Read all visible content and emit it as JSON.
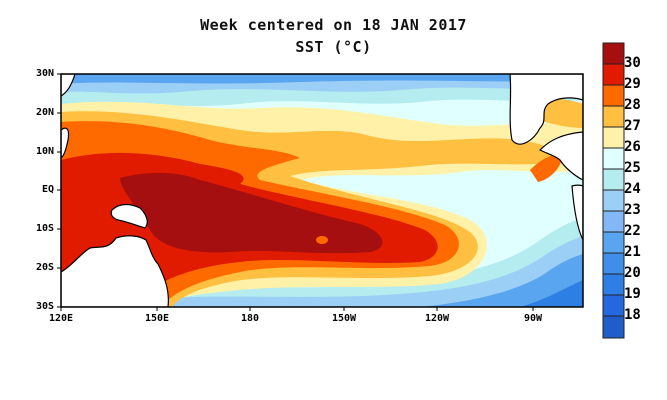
{
  "title": "Week centered on 18 JAN 2017",
  "subtitle": "SST (°C)",
  "chart_data": {
    "type": "heatmap",
    "title": "Week centered on 18 JAN 2017",
    "variable": "SST (°C)",
    "lat_ticks": [
      "30N",
      "20N",
      "10N",
      "EQ",
      "10S",
      "20S",
      "30S"
    ],
    "lon_ticks": [
      "120E",
      "150E",
      "180",
      "150W",
      "120W",
      "90W"
    ],
    "lat_range": [
      -30,
      30
    ],
    "lon_range": [
      120,
      285
    ],
    "colorbar": {
      "labels": [
        "30",
        "29",
        "28",
        "27",
        "26",
        "25",
        "24",
        "23",
        "22",
        "21",
        "20",
        "19",
        "18"
      ],
      "colors": [
        "#a50f0f",
        "#e11b00",
        "#ff6a00",
        "#ffbf40",
        "#fff2a8",
        "#e0ffff",
        "#b4ecf0",
        "#9ccff5",
        "#82b8f5",
        "#5aa5ef",
        "#3f8fe8",
        "#2e7fe3",
        "#2468e0",
        "#1f5ec8"
      ]
    }
  }
}
